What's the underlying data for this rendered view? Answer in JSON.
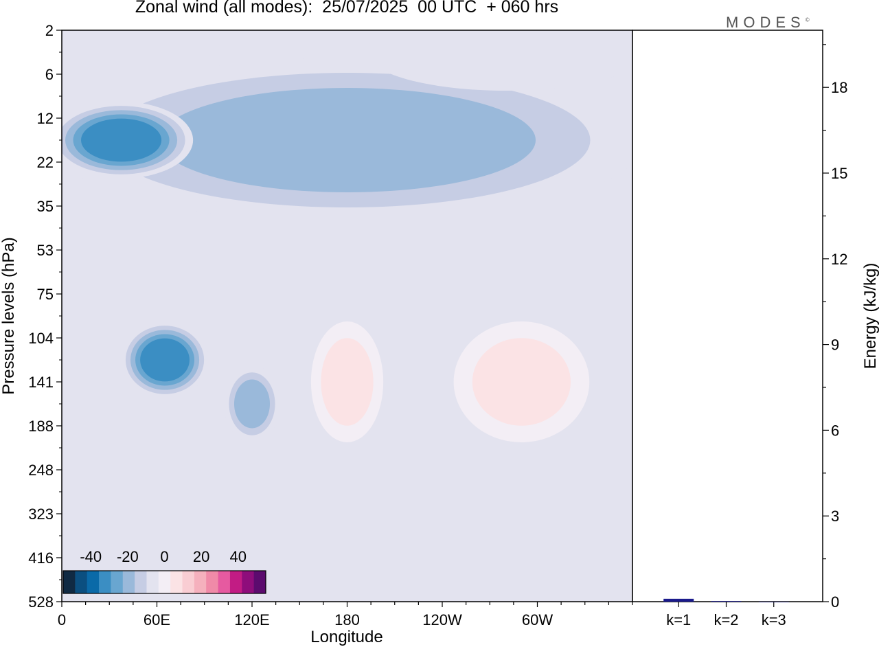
{
  "title": "Zonal wind (all modes):  25/07/2025  00 UTC  + 060 hrs",
  "logo": "MODES",
  "logo_mark": "©",
  "colors": {
    "palette": [
      "#102a43",
      "#0b4f80",
      "#0a6aa8",
      "#3b8ec3",
      "#69a6d0",
      "#9ab9da",
      "#c6cde4",
      "#e3e3ef",
      "#f3eef5",
      "#fbe3e5",
      "#f9cdd3",
      "#f5b0bd",
      "#f08aa8",
      "#e65aa0",
      "#c21c84",
      "#8e0d7b",
      "#5c0b6e"
    ],
    "background_field": "#e3e3ef"
  },
  "chart_data": [
    {
      "type": "heatmap",
      "title": "Zonal wind (all modes):  25/07/2025  00 UTC  + 060 hrs",
      "xlabel": "Longitude",
      "ylabel": "Pressure levels (hPa)",
      "x_tick_labels": [
        "0",
        "60E",
        "120E",
        "180",
        "120W",
        "60W"
      ],
      "x_tick_degrees": [
        0,
        60,
        120,
        180,
        240,
        300
      ],
      "xlim": [
        0,
        360
      ],
      "y_tick_labels": [
        "2",
        "6",
        "12",
        "22",
        "35",
        "53",
        "75",
        "104",
        "141",
        "188",
        "248",
        "323",
        "416",
        "528"
      ],
      "colorbar": {
        "tick_labels": [
          "-40",
          "-20",
          "0",
          "20",
          "40"
        ],
        "tick_values": [
          -40,
          -20,
          0,
          20,
          40
        ],
        "range": [
          -55,
          55
        ],
        "step": 6.5
      },
      "field_features": [
        {
          "level_range": [
            "6",
            "35"
          ],
          "lon_range": [
            0,
            360
          ],
          "value": -22
        },
        {
          "level_range": [
            "12",
            "22"
          ],
          "lon_range": [
            0,
            75
          ],
          "value": -34
        },
        {
          "level_range": [
            "104",
            "141"
          ],
          "lon_range": [
            45,
            85
          ],
          "value": -32
        },
        {
          "level_range": [
            "141",
            "188"
          ],
          "lon_range": [
            110,
            130
          ],
          "value": -22
        },
        {
          "level_range": [
            "104",
            "188"
          ],
          "lon_range": [
            165,
            195
          ],
          "value": 14
        },
        {
          "level_range": [
            "104",
            "188"
          ],
          "lon_range": [
            255,
            325
          ],
          "value": 10
        },
        {
          "level_range": [
            "2",
            "6"
          ],
          "lon_range": [
            200,
            360
          ],
          "value": -4
        }
      ]
    },
    {
      "type": "bar",
      "categories": [
        "k=1",
        "k=2",
        "k=3"
      ],
      "values": [
        0.1,
        0.02,
        0.0
      ],
      "ylabel": "Energy (kJ/kg)",
      "ylim": [
        0,
        20
      ],
      "y_tick_values": [
        0,
        3,
        6,
        9,
        12,
        15,
        18
      ],
      "bar_color": "#1a1a8c"
    }
  ]
}
